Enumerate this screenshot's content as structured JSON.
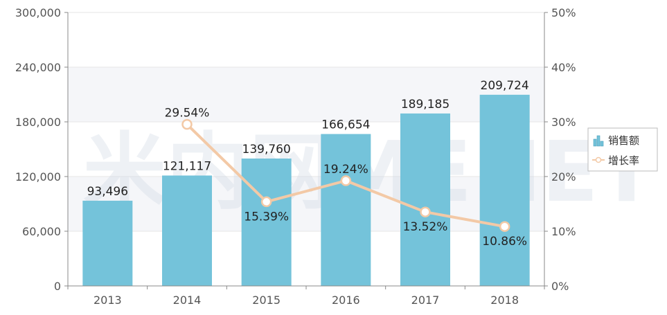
{
  "watermark": "米内网MENET",
  "colors": {
    "bar": "#74c3da",
    "line": "#f3c9a6",
    "marker_fill": "#ffffff",
    "axis": "#888888",
    "grid": "#e6e6e6",
    "band": "#f5f6f9"
  },
  "icons": {
    "bar_legend": "bar-chart-icon",
    "line_legend": "line-marker-icon"
  },
  "chart_data": {
    "type": "bar",
    "categories": [
      "2013",
      "2014",
      "2015",
      "2016",
      "2017",
      "2018"
    ],
    "series": [
      {
        "name": "销售额",
        "type": "bar",
        "axis": "left",
        "values": [
          93496,
          121117,
          139760,
          166654,
          189185,
          209724
        ],
        "labels": [
          "93,496",
          "121,117",
          "139,760",
          "166,654",
          "189,185",
          "209,724"
        ]
      },
      {
        "name": "增长率",
        "type": "line",
        "axis": "right",
        "x": [
          "2014",
          "2015",
          "2016",
          "2017",
          "2018"
        ],
        "values": [
          29.54,
          15.39,
          19.24,
          13.52,
          10.86
        ],
        "labels": [
          "29.54%",
          "15.39%",
          "19.24%",
          "13.52%",
          "10.86%"
        ]
      }
    ],
    "y_left": {
      "ylim": [
        0,
        300000
      ],
      "ticks": [
        0,
        60000,
        120000,
        180000,
        240000,
        300000
      ],
      "tick_labels": [
        "0",
        "60,000",
        "120,000",
        "180,000",
        "240,000",
        "300,000"
      ]
    },
    "y_right": {
      "ylim": [
        0,
        50
      ],
      "ticks": [
        0,
        10,
        20,
        30,
        40,
        50
      ],
      "tick_labels": [
        "0%",
        "10%",
        "20%",
        "30%",
        "40%",
        "50%"
      ]
    },
    "grid": true,
    "legend": "right"
  }
}
